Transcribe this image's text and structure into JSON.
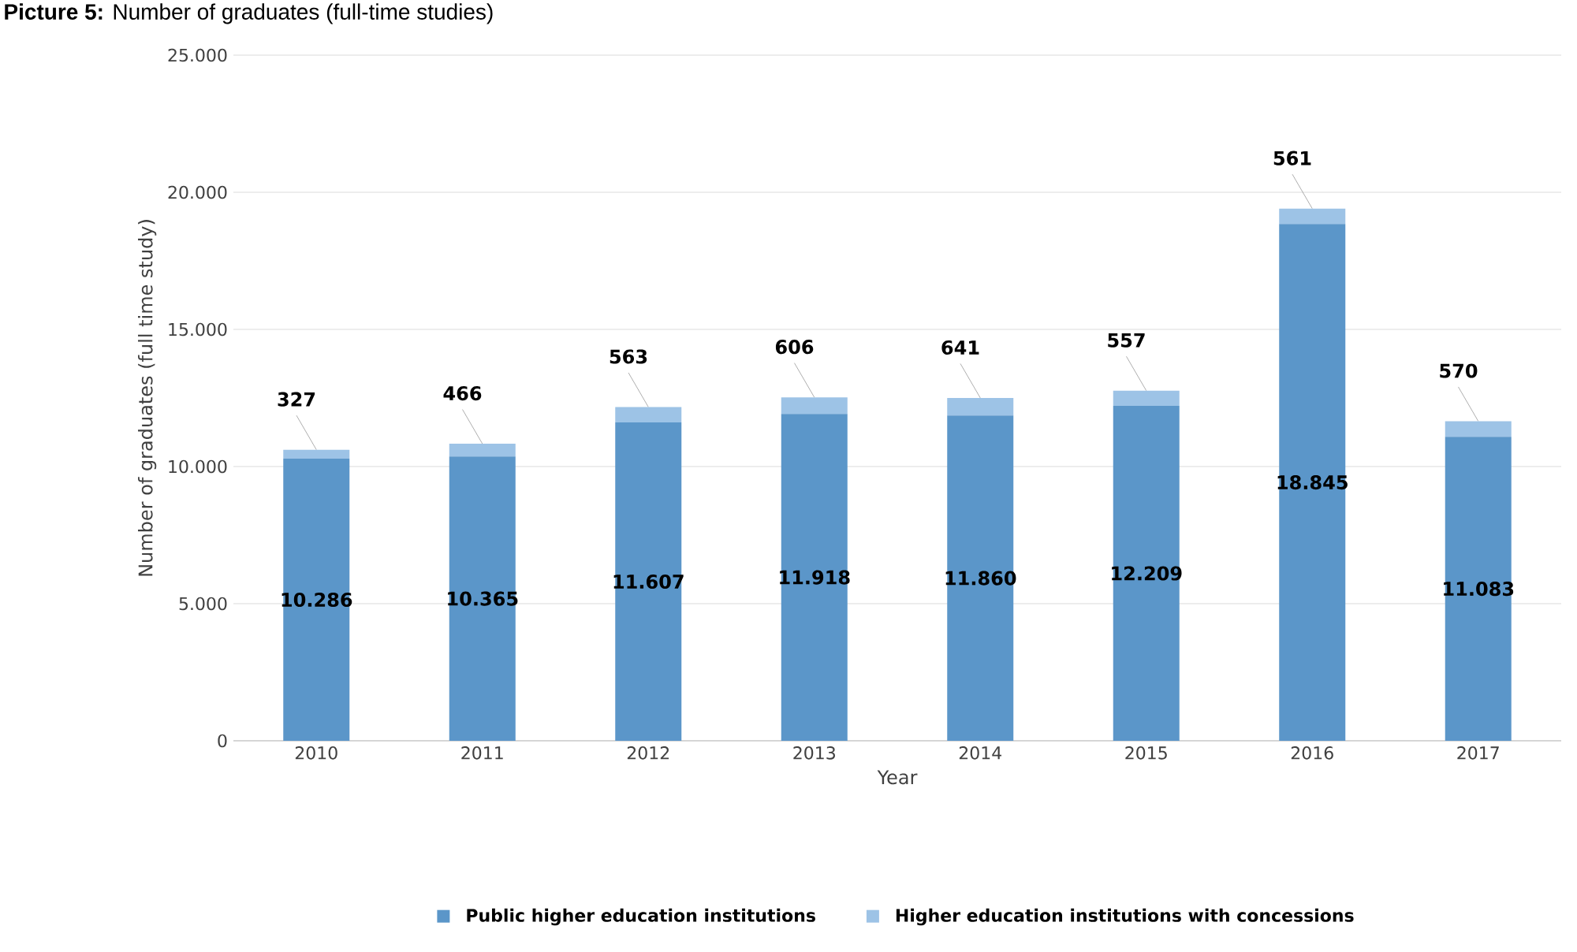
{
  "chart_data": {
    "type": "bar",
    "stacked": true,
    "title": "**Picture 5:** Number of graduates (full-time studies)",
    "xlabel": "Year",
    "ylabel": "Number of graduates (full time study)",
    "categories": [
      "2010",
      "2011",
      "2012",
      "2013",
      "2014",
      "2015",
      "2016",
      "2017"
    ],
    "series": [
      {
        "name": "Public higher education institutions",
        "color": "#5b96c9",
        "values": [
          10286,
          10365,
          11607,
          11918,
          11860,
          12209,
          18845,
          11083
        ],
        "value_labels": [
          "10.286",
          "10.365",
          "11.607",
          "11.918",
          "11.860",
          "12.209",
          "18.845",
          "11.083"
        ]
      },
      {
        "name": "Higher education institutions with concessions",
        "color": "#9dc3e6",
        "values": [
          327,
          466,
          563,
          606,
          641,
          557,
          561,
          570
        ],
        "value_labels": [
          "327",
          "466",
          "563",
          "606",
          "641",
          "557",
          "561",
          "570"
        ]
      }
    ],
    "ylim": [
      0,
      25000
    ],
    "yticks": [
      {
        "value": 0,
        "label": "0"
      },
      {
        "value": 5000,
        "label": "5.000"
      },
      {
        "value": 10000,
        "label": "10.000"
      },
      {
        "value": 15000,
        "label": "15.000"
      },
      {
        "value": 20000,
        "label": "20.000"
      },
      {
        "value": 25000,
        "label": "25.000"
      }
    ],
    "grid": "y",
    "legend": "bottom"
  }
}
